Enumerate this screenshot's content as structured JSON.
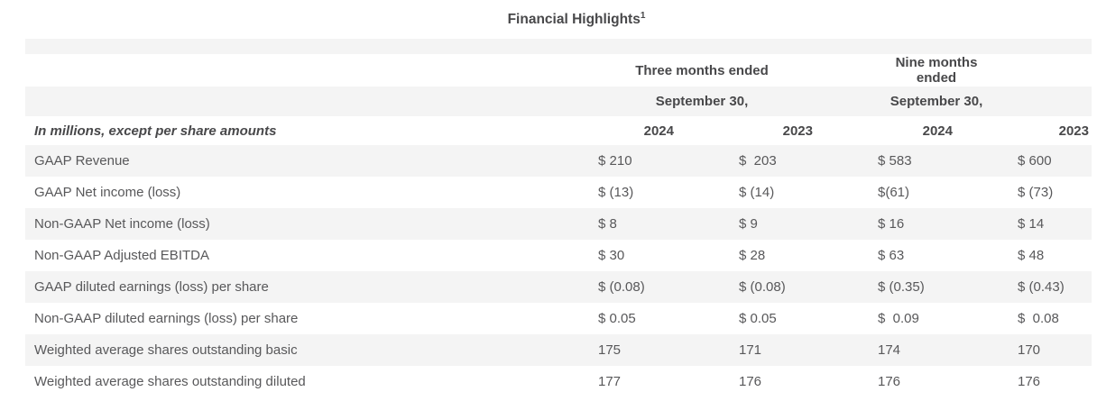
{
  "title": {
    "text": "Financial Highlights",
    "superscript": "1"
  },
  "table": {
    "group_headers": [
      {
        "label": "Three months ended",
        "sublabel": "September 30,"
      },
      {
        "label": "Nine months ended",
        "sublabel": "September 30,"
      }
    ],
    "units_note": "In millions, except per share amounts",
    "year_headers": [
      "2024",
      "2023",
      "2024",
      "2023"
    ],
    "rows": [
      {
        "label": "GAAP Revenue",
        "values": [
          "$ 210",
          "$  203",
          "$ 583",
          "$ 600"
        ]
      },
      {
        "label": "GAAP Net income (loss)",
        "values": [
          "$ (13)",
          "$ (14)",
          "$(61)",
          "$ (73)"
        ]
      },
      {
        "label": "Non-GAAP Net income (loss)",
        "values": [
          "$ 8",
          "$ 9",
          "$ 16",
          "$ 14"
        ]
      },
      {
        "label": "Non-GAAP Adjusted EBITDA",
        "values": [
          "$ 30",
          "$ 28",
          "$ 63",
          "$ 48"
        ]
      },
      {
        "label": "GAAP diluted earnings (loss) per share",
        "values": [
          "$ (0.08)",
          "$ (0.08)",
          "$ (0.35)",
          "$ (0.43)"
        ]
      },
      {
        "label": "Non-GAAP diluted earnings (loss) per share",
        "values": [
          "$ 0.05",
          "$ 0.05",
          "$  0.09",
          "$  0.08"
        ]
      },
      {
        "label": "Weighted average shares outstanding basic",
        "values": [
          "175",
          "171",
          "174",
          "170"
        ]
      },
      {
        "label": "Weighted average shares outstanding diluted",
        "values": [
          "177",
          "176",
          "176",
          "176"
        ]
      }
    ]
  },
  "colors": {
    "stripe": "#f4f4f4",
    "body_text": "#58585a",
    "heading_text": "#48484a"
  }
}
